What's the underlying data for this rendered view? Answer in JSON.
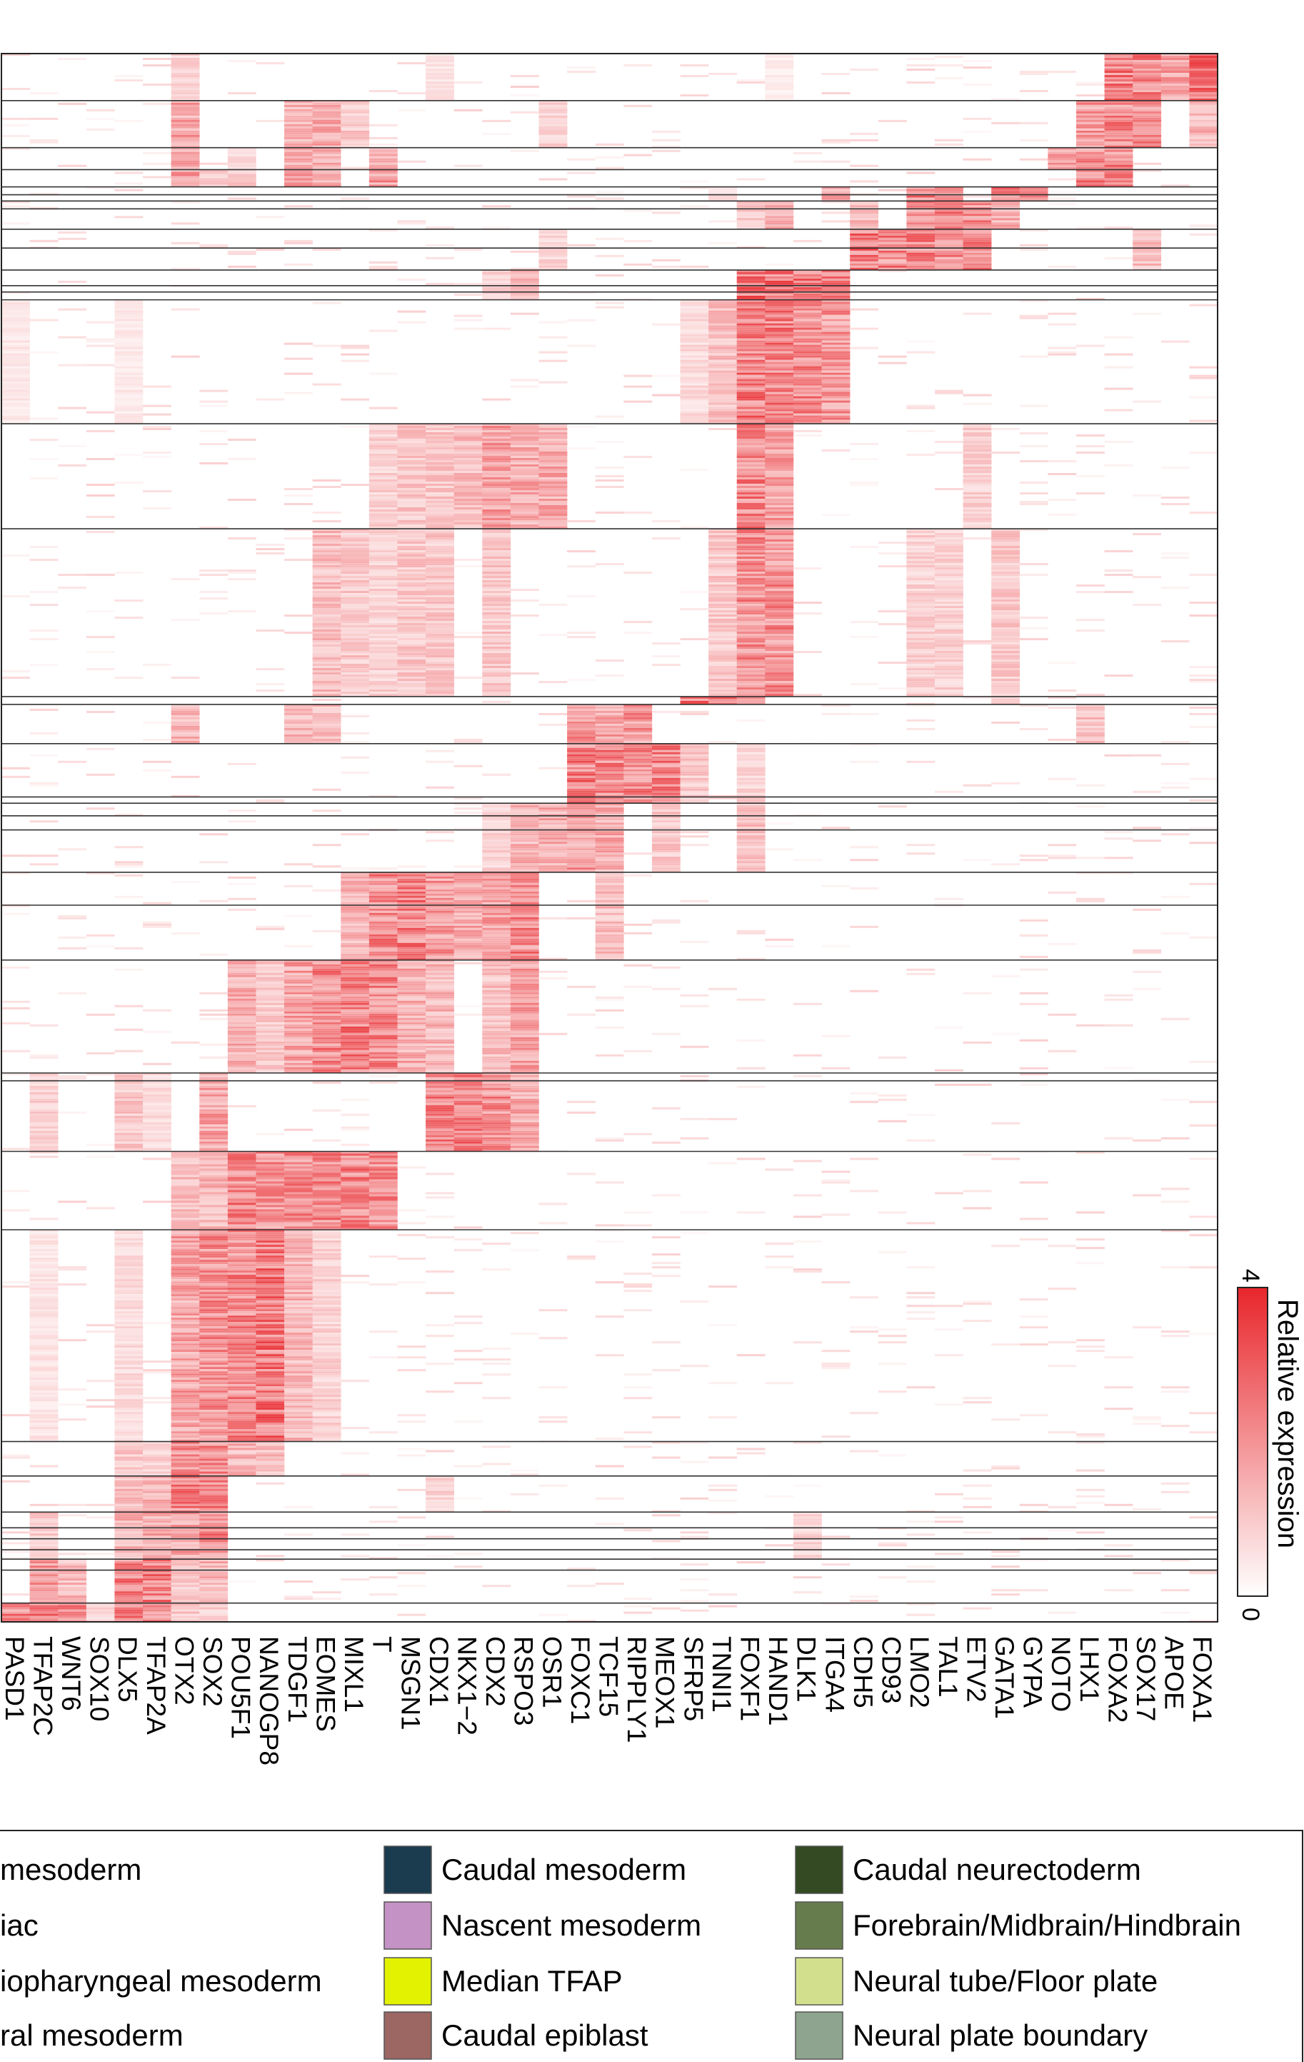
{
  "chart_data": {
    "type": "heatmap",
    "title": "",
    "xlabel": "",
    "ylabel": "",
    "genes": [
      "PASD1",
      "TFAP2C",
      "WNT6",
      "SOX10",
      "DLX5",
      "TFAP2A",
      "OTX2",
      "SOX2",
      "POU5F1",
      "NANOGP8",
      "TDGF1",
      "EOMES",
      "MIXL1",
      "T",
      "MSGN1",
      "CDX1",
      "NKX1−2",
      "CDX2",
      "RSPO3",
      "OSR1",
      "FOXC1",
      "TCF15",
      "RIPPLY1",
      "MEOX1",
      "SFRP5",
      "TNNI1",
      "FOXF1",
      "HAND1",
      "DLK1",
      "ITGA4",
      "CDH5",
      "CD93",
      "LMO2",
      "TAL1",
      "ETV2",
      "GATA1",
      "GYPA",
      "NOTO",
      "LHX1",
      "FOXA2",
      "SOX17",
      "APOE",
      "FOXA1"
    ],
    "color_scale": {
      "label": "Relative expression",
      "min": 0,
      "max": 4,
      "low_color": "#ffffff",
      "high_color": "#e8262b"
    },
    "cluster_boundaries_fraction": [
      0.03,
      0.06,
      0.074,
      0.085,
      0.09,
      0.094,
      0.099,
      0.112,
      0.124,
      0.138,
      0.148,
      0.152,
      0.157,
      0.236,
      0.303,
      0.41,
      0.415,
      0.44,
      0.474,
      0.478,
      0.486,
      0.495,
      0.522,
      0.543,
      0.578,
      0.65,
      0.655,
      0.7,
      0.75,
      0.885,
      0.907,
      0.93,
      0.94,
      0.947,
      0.954,
      0.96,
      0.967,
      0.988
    ],
    "cluster_profiles": [
      {
        "range": [
          0.0,
          0.03
        ],
        "genes": {
          "FOXA1": 3.0,
          "FOXA2": 2.8,
          "SOX17": 2.6,
          "APOE": 2.0,
          "OTX2": 0.9,
          "CDX1": 0.6,
          "HAND1": 0.4
        }
      },
      {
        "range": [
          0.03,
          0.06
        ],
        "genes": {
          "FOXA2": 2.6,
          "LHX1": 2.2,
          "SOX17": 2.4,
          "FOXA1": 1.6,
          "OTX2": 2.0,
          "EOMES": 1.8,
          "TDGF1": 1.6,
          "MIXL1": 1.2,
          "OSR1": 1.0
        }
      },
      {
        "range": [
          0.06,
          0.074
        ],
        "genes": {
          "LHX1": 2.6,
          "FOXA2": 2.6,
          "NOTO": 2.0,
          "OTX2": 1.8,
          "POU5F1": 0.8,
          "T": 1.8,
          "EOMES": 1.8,
          "TDGF1": 1.6
        }
      },
      {
        "range": [
          0.074,
          0.085
        ],
        "genes": {
          "LHX1": 2.8,
          "FOXA2": 2.4,
          "OTX2": 2.0,
          "TDGF1": 2.4,
          "EOMES": 2.0,
          "T": 2.2,
          "SOX2": 1.2,
          "POU5F1": 1.2
        }
      },
      {
        "range": [
          0.085,
          0.094
        ],
        "genes": {
          "GATA1": 2.8,
          "GYPA": 2.4,
          "LMO2": 2.6,
          "TAL1": 2.6,
          "ITGA4": 2.0,
          "TNNI1": 0.8
        }
      },
      {
        "range": [
          0.094,
          0.112
        ],
        "genes": {
          "LMO2": 2.6,
          "TAL1": 2.6,
          "ETV2": 2.4,
          "CDH5": 1.6,
          "GATA1": 1.8,
          "FOXF1": 1.2,
          "HAND1": 1.6
        }
      },
      {
        "range": [
          0.112,
          0.138
        ],
        "genes": {
          "CDH5": 3.0,
          "CD93": 2.6,
          "LMO2": 2.6,
          "TAL1": 2.4,
          "ETV2": 2.6,
          "SOX17": 1.4,
          "OSR1": 0.9
        }
      },
      {
        "range": [
          0.138,
          0.157
        ],
        "genes": {
          "FOXF1": 3.0,
          "HAND1": 3.0,
          "DLK1": 2.8,
          "ITGA4": 2.6,
          "RSPO3": 1.4,
          "CDX2": 1.0
        }
      },
      {
        "range": [
          0.157,
          0.236
        ],
        "genes": {
          "FOXF1": 2.8,
          "HAND1": 2.8,
          "DLK1": 2.6,
          "ITGA4": 2.2,
          "TNNI1": 1.4,
          "SFRP5": 0.8,
          "PASD1": 0.5,
          "DLX5": 0.5
        }
      },
      {
        "range": [
          0.236,
          0.303
        ],
        "genes": {
          "FOXF1": 2.6,
          "HAND1": 2.0,
          "RSPO3": 1.8,
          "CDX2": 2.0,
          "OSR1": 1.8,
          "NKX1−2": 1.4,
          "MSGN1": 1.2,
          "T": 1.0,
          "CDX1": 1.2,
          "ETV2": 1.0
        }
      },
      {
        "range": [
          0.303,
          0.41
        ],
        "genes": {
          "FOXF1": 2.4,
          "HAND1": 2.4,
          "TNNI1": 1.2,
          "EOMES": 1.4,
          "MIXL1": 1.2,
          "T": 1.0,
          "MSGN1": 1.2,
          "CDX1": 1.2,
          "CDX2": 1.2,
          "LMO2": 1.0,
          "GATA1": 1.2,
          "TAL1": 1.0
        }
      },
      {
        "range": [
          0.41,
          0.415
        ],
        "genes": {
          "SFRP5": 3.0,
          "TNNI1": 2.8,
          "FOXF1": 2.2,
          "GATA1": 1.2
        }
      },
      {
        "range": [
          0.415,
          0.44
        ],
        "genes": {
          "FOXC1": 2.4,
          "TCF15": 2.0,
          "RIPPLY1": 2.2,
          "OTX2": 1.6,
          "TDGF1": 1.6,
          "EOMES": 1.4,
          "LHX1": 1.4
        }
      },
      {
        "range": [
          0.44,
          0.478
        ],
        "genes": {
          "FOXC1": 2.8,
          "TCF15": 2.6,
          "RIPPLY1": 2.6,
          "MEOX1": 2.6,
          "SFRP5": 1.2,
          "FOXF1": 1.0
        }
      },
      {
        "range": [
          0.478,
          0.522
        ],
        "genes": {
          "FOXC1": 2.2,
          "TCF15": 1.8,
          "OSR1": 1.8,
          "RSPO3": 1.6,
          "FOXF1": 1.4,
          "MEOX1": 1.2,
          "CDX2": 1.0
        }
      },
      {
        "range": [
          0.522,
          0.578
        ],
        "genes": {
          "T": 2.6,
          "MSGN1": 2.8,
          "CDX1": 2.2,
          "NKX1−2": 1.8,
          "RSPO3": 2.6,
          "CDX2": 2.0,
          "MIXL1": 1.6,
          "TCF15": 1.4
        }
      },
      {
        "range": [
          0.578,
          0.65
        ],
        "genes": {
          "MIXL1": 2.8,
          "T": 2.6,
          "EOMES": 2.6,
          "TDGF1": 2.0,
          "POU5F1": 1.8,
          "MSGN1": 1.8,
          "CDX1": 1.6,
          "RSPO3": 2.0,
          "CDX2": 1.4,
          "NANOGP8": 1.2
        }
      },
      {
        "range": [
          0.65,
          0.7
        ],
        "genes": {
          "CDX1": 2.6,
          "NKX1−2": 2.8,
          "CDX2": 2.4,
          "SOX2": 2.0,
          "RSPO3": 1.8,
          "DLX5": 1.2,
          "TFAP2C": 1.0,
          "TFAP2A": 0.8
        }
      },
      {
        "range": [
          0.7,
          0.75
        ],
        "genes": {
          "POU5F1": 2.6,
          "NANOGP8": 2.4,
          "TDGF1": 2.4,
          "EOMES": 2.6,
          "MIXL1": 2.6,
          "T": 2.4,
          "SOX2": 1.6,
          "OTX2": 1.4
        }
      },
      {
        "range": [
          0.75,
          0.885
        ],
        "genes": {
          "NANOGP8": 3.0,
          "POU5F1": 2.6,
          "SOX2": 2.4,
          "OTX2": 2.0,
          "TDGF1": 1.6,
          "EOMES": 1.0,
          "DLX5": 0.8,
          "TFAP2C": 0.6
        }
      },
      {
        "range": [
          0.885,
          0.907
        ],
        "genes": {
          "SOX2": 2.4,
          "OTX2": 2.4,
          "POU5F1": 1.6,
          "NANOGP8": 1.4,
          "DLX5": 1.2,
          "TFAP2A": 1.0
        }
      },
      {
        "range": [
          0.907,
          0.93
        ],
        "genes": {
          "SOX2": 2.6,
          "OTX2": 2.6,
          "TFAP2A": 1.6,
          "DLX5": 1.4,
          "CDX1": 1.0
        }
      },
      {
        "range": [
          0.93,
          0.96
        ],
        "genes": {
          "SOX2": 2.6,
          "OTX2": 2.0,
          "TFAP2A": 1.8,
          "DLX5": 1.6,
          "TFAP2C": 1.2,
          "DLK1": 1.0
        }
      },
      {
        "range": [
          0.96,
          0.988
        ],
        "genes": {
          "TFAP2A": 2.8,
          "DLX5": 2.8,
          "TFAP2C": 2.2,
          "WNT6": 1.6,
          "SOX2": 1.6,
          "OTX2": 1.2
        }
      },
      {
        "range": [
          0.988,
          1.0
        ],
        "genes": {
          "TFAP2C": 2.8,
          "PASD1": 2.6,
          "WNT6": 2.8,
          "SOX10": 1.0,
          "DLX5": 2.6,
          "TFAP2A": 2.6,
          "OTX2": 1.2,
          "SOX2": 1.0
        }
      }
    ],
    "legend": {
      "placement": "bottom",
      "entries": [
        {
          "name": "mesoderm",
          "color": ""
        },
        {
          "name": "iac",
          "color": ""
        },
        {
          "name": "iopharyngeal mesoderm",
          "color": ""
        },
        {
          "name": "ral mesoderm",
          "color": ""
        },
        {
          "name": "Caudal  mesoderm",
          "color": "#1b3b4f"
        },
        {
          "name": "Nascent mesoderm",
          "color": "#c492c4"
        },
        {
          "name": "Median TFAP",
          "color": "#e2f200"
        },
        {
          "name": "Caudal epiblast",
          "color": "#9c6662"
        },
        {
          "name": "Caudal neurectoderm",
          "color": "#334a22"
        },
        {
          "name": "Forebrain/Midbrain/Hindbrain",
          "color": "#667c4c"
        },
        {
          "name": "Neural tube/Floor plate",
          "color": "#d2e08e"
        },
        {
          "name": "Neural plate boundary",
          "color": "#8ea48e"
        }
      ]
    }
  }
}
